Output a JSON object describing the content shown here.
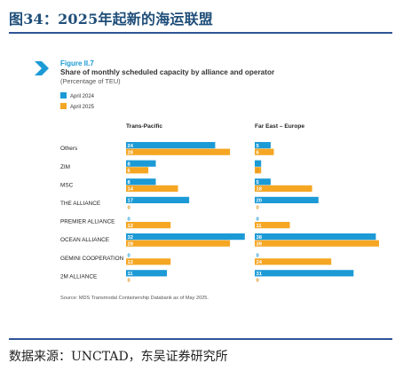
{
  "header": {
    "title": "图34：2025年起新的海运联盟",
    "source": "数据来源：UNCTAD，东吴证券研究所"
  },
  "figure": {
    "label": "Figure II.7",
    "title": "Share of monthly scheduled capacity by alliance and operator",
    "subtitle": "(Percentage of TEU)",
    "note": "Source: MDS Transmodal Containership Databank as of May 2025."
  },
  "colors": {
    "april_2024": "#1b9ad6",
    "april_2025": "#f5a623",
    "label_2024": "#1b9ad6",
    "label_2025": "#e0901a",
    "accent": "#1b9ad6",
    "rule": "#2f5597",
    "title": "#1f4e79"
  },
  "chart_data": {
    "type": "bar",
    "orientation": "horizontal",
    "categories": [
      "Others",
      "ZIM",
      "MSC",
      "THE ALLIANCE",
      "PREMIER ALLIANCE",
      "OCEAN ALLIANCE",
      "GEMINI COOPERATION",
      "2M ALLIANCE"
    ],
    "legend": [
      "April 2024",
      "April 2025"
    ],
    "legend_position": "top-left",
    "grid": false,
    "panels": [
      {
        "title": "Trans-Pacific",
        "xlim": [
          0,
          33
        ],
        "series": [
          {
            "name": "April 2024",
            "values": [
              24,
              8,
              8,
              17,
              0,
              32,
              0,
              11
            ]
          },
          {
            "name": "April 2025",
            "values": [
              28,
              6,
              14,
              0,
              12,
              28,
              12,
              0
            ]
          }
        ]
      },
      {
        "title": "Far East – Europe",
        "xlim": [
          0,
          39
        ],
        "series": [
          {
            "name": "April 2024",
            "values": [
              5,
              2,
              5,
              20,
              0,
              38,
              0,
              31
            ]
          },
          {
            "name": "April 2025",
            "values": [
              6,
              2,
              18,
              0,
              11,
              39,
              24,
              0
            ]
          }
        ]
      }
    ]
  }
}
